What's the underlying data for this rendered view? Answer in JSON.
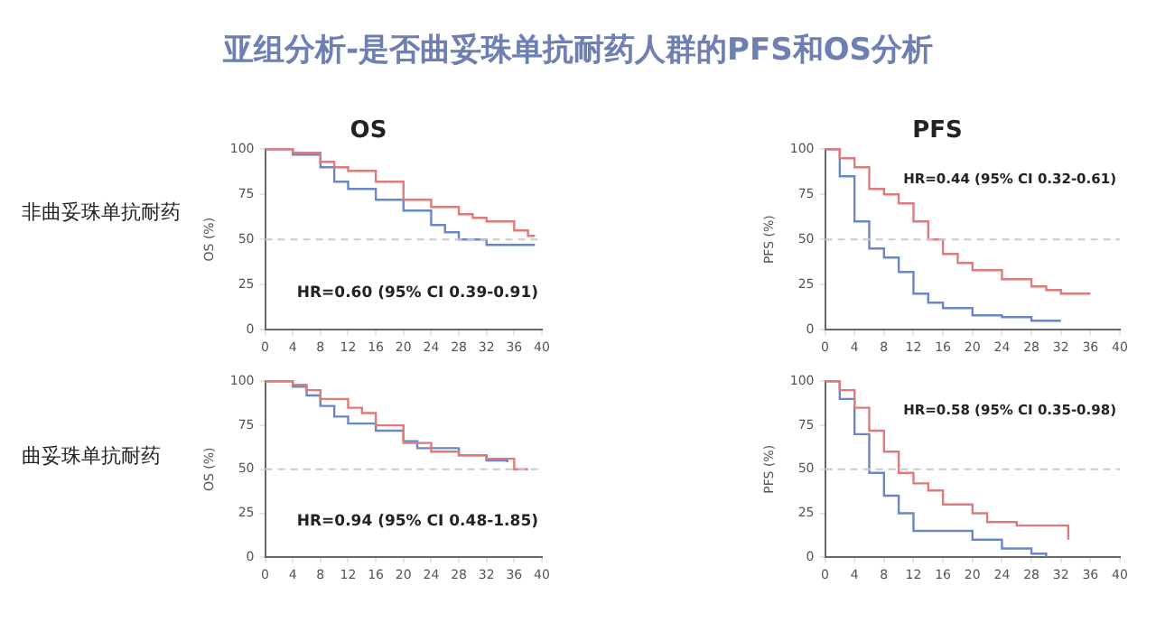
{
  "chart_data": [
    {
      "type": "other",
      "title": "亚组分析-是否曲妥珠单抗耐药人群的PFS和OS分析"
    },
    {
      "type": "step",
      "title": "OS",
      "subtitle": "非曲妥珠单抗耐药",
      "ylabel": "OS (%)",
      "xlim": [
        0,
        40
      ],
      "xticks": [
        0,
        4,
        8,
        12,
        16,
        20,
        24,
        28,
        32,
        36,
        40
      ],
      "ylim": [
        0,
        100
      ],
      "yticks": [
        0,
        25,
        50,
        75,
        100
      ],
      "grid": false,
      "legend": false,
      "marker": "none",
      "ref_lines": [
        {
          "axis": "y",
          "value": 50,
          "line_style": "dashed",
          "color": "#c8c8d8"
        }
      ],
      "annotations": [
        "HR=0.60 (95% CI 0.39-0.91)"
      ],
      "series": [
        {
          "color": "#e07a7a",
          "x": [
            0,
            4,
            8,
            10,
            12,
            16,
            20,
            24,
            28,
            30,
            32,
            36,
            38,
            39
          ],
          "values": [
            100,
            98,
            93,
            90,
            88,
            82,
            72,
            68,
            64,
            62,
            60,
            55,
            52,
            52
          ]
        },
        {
          "color": "#6a86c8",
          "x": [
            0,
            4,
            8,
            10,
            12,
            16,
            20,
            24,
            26,
            28,
            32,
            36,
            39
          ],
          "values": [
            100,
            97,
            90,
            82,
            78,
            72,
            66,
            58,
            54,
            50,
            47,
            47,
            47
          ]
        }
      ]
    },
    {
      "type": "step",
      "title": "PFS",
      "ylabel": "PFS (%)",
      "xlim": [
        0,
        40
      ],
      "xticks": [
        0,
        4,
        8,
        12,
        16,
        20,
        24,
        28,
        32,
        36,
        40
      ],
      "ylim": [
        0,
        100
      ],
      "yticks": [
        0,
        25,
        50,
        75,
        100
      ],
      "grid": false,
      "legend": false,
      "marker": "none",
      "ref_lines": [
        {
          "axis": "y",
          "value": 50,
          "line_style": "dashed",
          "color": "#c8c8d8"
        }
      ],
      "annotations": [
        "HR=0.44 (95% CI 0.32-0.61)"
      ],
      "series": [
        {
          "color": "#e07a7a",
          "x": [
            0,
            2,
            4,
            6,
            8,
            10,
            12,
            14,
            16,
            18,
            20,
            24,
            28,
            30,
            32,
            36
          ],
          "values": [
            100,
            95,
            90,
            78,
            75,
            70,
            60,
            50,
            42,
            37,
            33,
            28,
            24,
            22,
            20,
            20
          ]
        },
        {
          "color": "#6a86c8",
          "x": [
            0,
            2,
            4,
            6,
            8,
            10,
            12,
            14,
            16,
            20,
            24,
            28,
            32
          ],
          "values": [
            100,
            85,
            60,
            45,
            40,
            32,
            20,
            15,
            12,
            8,
            7,
            5,
            5
          ]
        }
      ]
    },
    {
      "type": "step",
      "subtitle": "曲妥珠单抗耐药",
      "ylabel": "OS (%)",
      "xlim": [
        0,
        40
      ],
      "xticks": [
        0,
        4,
        8,
        12,
        16,
        20,
        24,
        28,
        32,
        36,
        40
      ],
      "ylim": [
        0,
        100
      ],
      "yticks": [
        0,
        25,
        50,
        75,
        100
      ],
      "grid": false,
      "legend": false,
      "marker": "none",
      "ref_lines": [
        {
          "axis": "y",
          "value": 50,
          "line_style": "dashed",
          "color": "#c8c8d8"
        }
      ],
      "annotations": [
        "HR=0.94 (95% CI 0.48-1.85)"
      ],
      "series": [
        {
          "color": "#e07a7a",
          "x": [
            0,
            4,
            6,
            8,
            12,
            14,
            16,
            20,
            24,
            28,
            32,
            36,
            38
          ],
          "values": [
            100,
            98,
            95,
            90,
            85,
            82,
            75,
            65,
            60,
            58,
            56,
            50,
            50
          ]
        },
        {
          "color": "#6a86c8",
          "x": [
            0,
            4,
            6,
            8,
            10,
            12,
            16,
            20,
            22,
            28,
            32,
            35
          ],
          "values": [
            100,
            97,
            92,
            86,
            80,
            76,
            72,
            66,
            62,
            58,
            55,
            54
          ]
        }
      ]
    },
    {
      "type": "step",
      "ylabel": "PFS (%)",
      "xlim": [
        0,
        40
      ],
      "xticks": [
        0,
        4,
        8,
        12,
        16,
        20,
        24,
        28,
        32,
        36,
        40
      ],
      "ylim": [
        0,
        100
      ],
      "yticks": [
        0,
        25,
        50,
        75,
        100
      ],
      "grid": false,
      "legend": false,
      "marker": "none",
      "ref_lines": [
        {
          "axis": "y",
          "value": 50,
          "line_style": "dashed",
          "color": "#c8c8d8"
        }
      ],
      "annotations": [
        "HR=0.58 (95% CI 0.35-0.98)"
      ],
      "series": [
        {
          "color": "#e07a7a",
          "x": [
            0,
            2,
            4,
            6,
            8,
            10,
            12,
            14,
            16,
            20,
            22,
            26,
            32,
            33
          ],
          "values": [
            100,
            95,
            85,
            72,
            60,
            48,
            42,
            38,
            30,
            25,
            20,
            18,
            18,
            10
          ]
        },
        {
          "color": "#6a86c8",
          "x": [
            0,
            2,
            4,
            6,
            8,
            10,
            12,
            16,
            20,
            24,
            28,
            30
          ],
          "values": [
            100,
            90,
            70,
            48,
            35,
            25,
            15,
            15,
            10,
            5,
            2,
            0
          ]
        }
      ]
    }
  ]
}
